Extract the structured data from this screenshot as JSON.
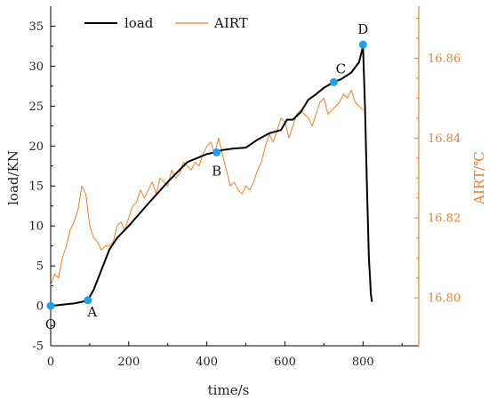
{
  "chart_data": {
    "type": "line",
    "title": "",
    "xlabel": "time/s",
    "ylabel": "load/KN",
    "y2label": "AIRT/℃",
    "xlim": [
      0,
      920
    ],
    "ylim": [
      -5,
      37.5
    ],
    "y2lim": [
      16.788,
      16.873
    ],
    "x_ticks": [
      "0",
      "200",
      "400",
      "600",
      "800"
    ],
    "y_ticks": [
      "-5",
      "0",
      "5",
      "10",
      "15",
      "20",
      "25",
      "30",
      "35"
    ],
    "y2_ticks": [
      "16.80",
      "16.82",
      "16.84",
      "16.86"
    ],
    "legend_position": "top-left",
    "colors": {
      "load": "#000000",
      "airt": "#f07e26",
      "points": "#1ea1f0"
    },
    "series": [
      {
        "name": "load",
        "axis": "left",
        "x": [
          0,
          20,
          40,
          60,
          80,
          95,
          110,
          130,
          150,
          170,
          200,
          250,
          300,
          350,
          400,
          420,
          440,
          470,
          500,
          530,
          560,
          590,
          605,
          620,
          640,
          660,
          680,
          700,
          725,
          745,
          770,
          790,
          800,
          805,
          810,
          815,
          818,
          820,
          823
        ],
        "y": [
          0,
          0.1,
          0.2,
          0.3,
          0.5,
          0.7,
          2.0,
          4.5,
          7.0,
          8.5,
          10.0,
          12.8,
          15.5,
          18.0,
          19.0,
          19.2,
          19.5,
          19.7,
          19.8,
          20.8,
          21.6,
          22.0,
          23.3,
          23.3,
          24.2,
          25.8,
          26.5,
          27.3,
          28.0,
          28.4,
          29.2,
          30.5,
          32.5,
          25.0,
          15.0,
          6.0,
          3.5,
          1.5,
          0.5
        ]
      },
      {
        "name": "AIRT",
        "axis": "right",
        "x": [
          0,
          10,
          20,
          30,
          40,
          50,
          60,
          70,
          80,
          90,
          100,
          110,
          120,
          130,
          140,
          150,
          160,
          170,
          180,
          190,
          200,
          210,
          220,
          230,
          240,
          250,
          260,
          270,
          280,
          290,
          300,
          310,
          320,
          330,
          340,
          350,
          360,
          370,
          380,
          390,
          400,
          410,
          420,
          430,
          440,
          450,
          460,
          470,
          480,
          490,
          500,
          510,
          520,
          530,
          540,
          550,
          560,
          570,
          580,
          590,
          600,
          610,
          620,
          630,
          640,
          650,
          660,
          670,
          680,
          690,
          700,
          710,
          720,
          730,
          740,
          750,
          760,
          770,
          780,
          790,
          800
        ],
        "y": [
          16.803,
          16.806,
          16.805,
          16.81,
          16.813,
          16.817,
          16.819,
          16.822,
          16.828,
          16.826,
          16.818,
          16.815,
          16.814,
          16.812,
          16.813,
          16.813,
          16.814,
          16.818,
          16.819,
          16.817,
          16.82,
          16.823,
          16.824,
          16.827,
          16.825,
          16.827,
          16.829,
          16.826,
          16.83,
          16.829,
          16.828,
          16.832,
          16.83,
          16.831,
          16.834,
          16.833,
          16.832,
          16.834,
          16.833,
          16.836,
          16.838,
          16.839,
          16.836,
          16.84,
          16.836,
          16.832,
          16.828,
          16.829,
          16.827,
          16.826,
          16.828,
          16.827,
          16.829,
          16.832,
          16.834,
          16.838,
          16.841,
          16.839,
          16.842,
          16.845,
          16.844,
          16.84,
          16.843,
          16.846,
          16.847,
          16.846,
          16.845,
          16.843,
          16.846,
          16.849,
          16.85,
          16.846,
          16.847,
          16.848,
          16.849,
          16.851,
          16.85,
          16.852,
          16.849,
          16.848,
          16.847
        ]
      }
    ],
    "points": [
      {
        "label": "O",
        "x": 0,
        "y": 0
      },
      {
        "label": "A",
        "x": 95,
        "y": 0.7
      },
      {
        "label": "B",
        "x": 425,
        "y": 19.2
      },
      {
        "label": "C",
        "x": 725,
        "y": 28.0
      },
      {
        "label": "D",
        "x": 800,
        "y": 32.7
      }
    ]
  }
}
